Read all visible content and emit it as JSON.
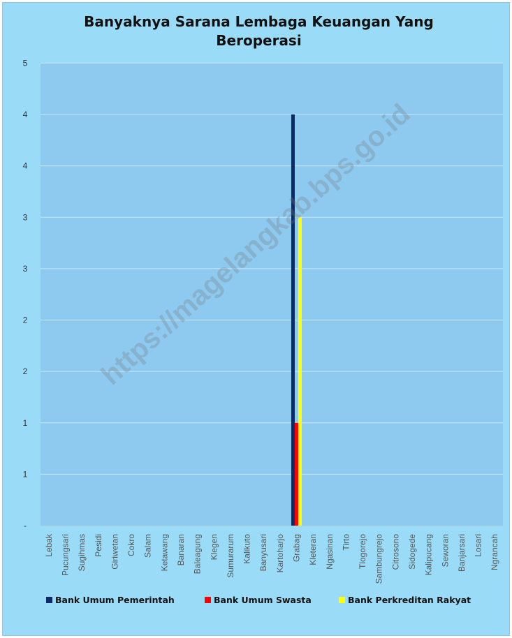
{
  "chart_data": {
    "type": "bar",
    "title": "Banyaknya Sarana Lembaga Keuangan Yang Beroperasi",
    "categories": [
      "Lebak",
      "Pucungsari",
      "Sugihmas",
      "Pesidi",
      "Giriwetan",
      "Cokro",
      "Salam",
      "Ketawang",
      "Banaran",
      "Baleagung",
      "Klegen",
      "Sumurarum",
      "Kalikuto",
      "Banyusari",
      "Kartoharjo",
      "Grabag",
      "Kleteran",
      "Ngasinan",
      "Tirto",
      "Tlogorejo",
      "Sambungrejo",
      "Citrosono",
      "Sidogede",
      "Kalipucang",
      "Seworan",
      "Banjarsari",
      "Losari",
      "Ngrancah"
    ],
    "series": [
      {
        "name": "Bank Umum Pemerintah",
        "color": "#0b2a66",
        "values": [
          0,
          0,
          0,
          0,
          0,
          0,
          0,
          0,
          0,
          0,
          0,
          0,
          0,
          0,
          0,
          4,
          0,
          0,
          0,
          0,
          0,
          0,
          0,
          0,
          0,
          0,
          0,
          0
        ]
      },
      {
        "name": "Bank Umum Swasta",
        "color": "#ff0000",
        "values": [
          0,
          0,
          0,
          0,
          0,
          0,
          0,
          0,
          0,
          0,
          0,
          0,
          0,
          0,
          0,
          1,
          0,
          0,
          0,
          0,
          0,
          0,
          0,
          0,
          0,
          0,
          0,
          0
        ]
      },
      {
        "name": "Bank Perkreditan Rakyat",
        "color": "#ffff00",
        "values": [
          0,
          0,
          0,
          0,
          0,
          0,
          0,
          0,
          0,
          0,
          0,
          0,
          0,
          0,
          0,
          3,
          0,
          0,
          0,
          0,
          0,
          0,
          0,
          0,
          0,
          0,
          0,
          0
        ]
      }
    ],
    "ylim": [
      0,
      4
    ],
    "yticks": [
      0,
      0.5,
      1,
      1.5,
      2,
      2.5,
      3,
      3.5,
      4
    ],
    "ytick_labels": [
      "-",
      "1",
      "1",
      "2",
      "2",
      "3",
      "3",
      "4",
      "4"
    ],
    "grid": true,
    "legend_position": "bottom",
    "xlabel": "",
    "ylabel": ""
  },
  "watermark": "https://magelangkab.bps.go.id",
  "colors": {
    "outer_background": "#9adcf8",
    "plot_background": "#8ecaf0",
    "gridline": "#c8e6f8"
  }
}
